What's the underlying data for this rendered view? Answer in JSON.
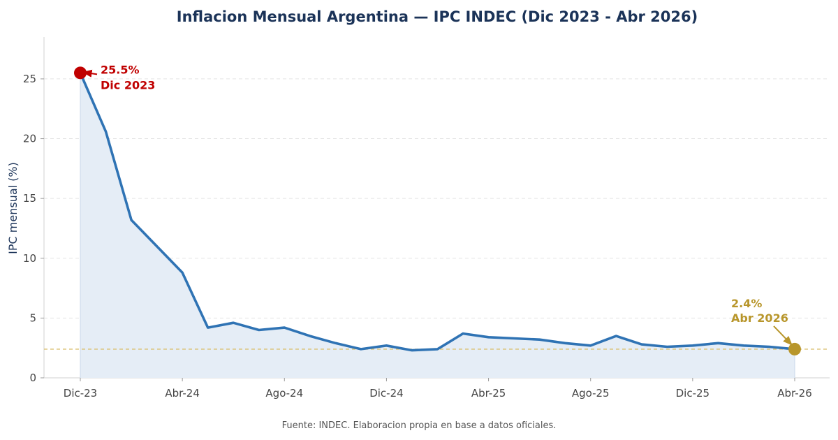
{
  "chart_data": {
    "type": "line",
    "title": "Inflacion Mensual Argentina — IPC INDEC (Dic 2023 - Abr 2026)",
    "ylabel": "IPC mensual (%)",
    "xlabel": "",
    "source": "Fuente: INDEC. Elaboracion propia en base a datos oficiales.",
    "ylim": [
      0,
      28.5
    ],
    "yticks": [
      0,
      5,
      10,
      15,
      20,
      25
    ],
    "grid": true,
    "x": [
      "Dic-23",
      "Ene-24",
      "Feb-24",
      "Mar-24",
      "Abr-24",
      "May-24",
      "Jun-24",
      "Jul-24",
      "Ago-24",
      "Sep-24",
      "Oct-24",
      "Nov-24",
      "Dic-24",
      "Ene-25",
      "Feb-25",
      "Mar-25",
      "Abr-25",
      "May-25",
      "Jun-25",
      "Jul-25",
      "Ago-25",
      "Sep-25",
      "Oct-25",
      "Nov-25",
      "Dic-25",
      "Ene-26",
      "Feb-26",
      "Mar-26",
      "Abr-26"
    ],
    "xtick_labels": [
      "Dic-23",
      "Abr-24",
      "Ago-24",
      "Dic-24",
      "Abr-25",
      "Ago-25",
      "Dic-25",
      "Abr-26"
    ],
    "series": [
      {
        "values": [
          25.5,
          20.6,
          13.2,
          11.0,
          8.8,
          4.2,
          4.6,
          4.0,
          4.2,
          3.5,
          2.9,
          2.4,
          2.7,
          2.3,
          2.4,
          3.7,
          3.4,
          3.3,
          3.2,
          2.9,
          2.7,
          3.5,
          2.8,
          2.6,
          2.7,
          2.9,
          2.7,
          2.6,
          2.4
        ],
        "color": "#2f73b4",
        "fill": "#e5edf6"
      }
    ],
    "reference_line": {
      "value": 2.4,
      "color": "#d9bf6e"
    },
    "annotations": {
      "start": {
        "value_label": "25.5%",
        "date_label": "Dic 2023",
        "color": "#c00000"
      },
      "end": {
        "value_label": "2.4%",
        "date_label": "Abr 2026",
        "color": "#b8962b"
      }
    }
  }
}
